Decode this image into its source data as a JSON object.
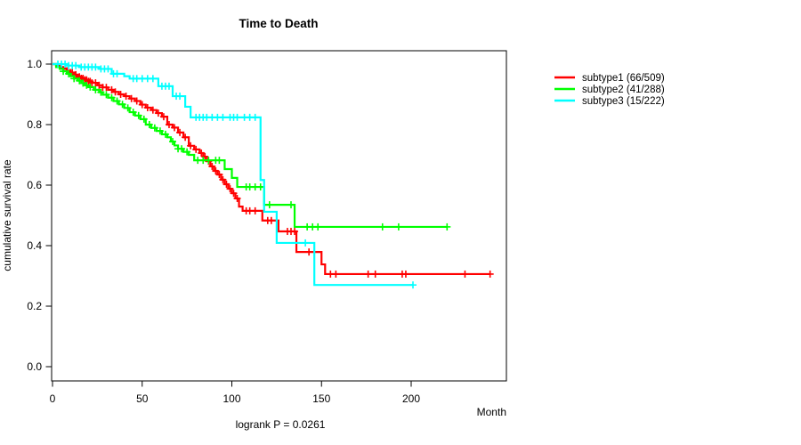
{
  "title": "Time to Death",
  "ylabel": "cumulative survival rate",
  "xlabel": "Month",
  "footnote": "logrank P = 0.0261",
  "axis_color": "#000000",
  "background_color": "#ffffff",
  "chart_data": {
    "type": "line",
    "subtype": "kaplan-meier-step-survival",
    "title": "Time to Death",
    "xlabel": "Month",
    "ylabel": "cumulative survival rate",
    "annotation": "logrank P = 0.0261",
    "xlim": [
      0,
      250
    ],
    "ylim": [
      0.0,
      1.0
    ],
    "x_ticks": [
      0,
      50,
      100,
      150,
      200
    ],
    "y_ticks": [
      "0.0",
      "0.2",
      "0.4",
      "0.6",
      "0.8",
      "1.0"
    ],
    "grid": false,
    "legend_position": "right-outside",
    "series": [
      {
        "name": "subtype1",
        "label": "subtype1 (66/509)",
        "events": 66,
        "n": 509,
        "color": "#FF0000",
        "steps": [
          [
            0,
            1.0
          ],
          [
            2,
            0.995
          ],
          [
            4,
            0.99
          ],
          [
            6,
            0.985
          ],
          [
            8,
            0.978
          ],
          [
            10,
            0.972
          ],
          [
            12,
            0.965
          ],
          [
            14,
            0.958
          ],
          [
            16,
            0.953
          ],
          [
            18,
            0.948
          ],
          [
            20,
            0.943
          ],
          [
            22,
            0.938
          ],
          [
            25,
            0.93
          ],
          [
            28,
            0.923
          ],
          [
            31,
            0.915
          ],
          [
            34,
            0.908
          ],
          [
            37,
            0.9
          ],
          [
            40,
            0.894
          ],
          [
            43,
            0.886
          ],
          [
            46,
            0.878
          ],
          [
            49,
            0.866
          ],
          [
            52,
            0.856
          ],
          [
            55,
            0.848
          ],
          [
            58,
            0.838
          ],
          [
            61,
            0.826
          ],
          [
            64,
            0.8
          ],
          [
            67,
            0.79
          ],
          [
            70,
            0.774
          ],
          [
            73,
            0.758
          ],
          [
            76,
            0.73
          ],
          [
            79,
            0.718
          ],
          [
            82,
            0.706
          ],
          [
            84,
            0.694
          ],
          [
            86,
            0.679
          ],
          [
            88,
            0.662
          ],
          [
            90,
            0.647
          ],
          [
            92,
            0.635
          ],
          [
            94,
            0.618
          ],
          [
            96,
            0.603
          ],
          [
            98,
            0.588
          ],
          [
            100,
            0.573
          ],
          [
            102,
            0.556
          ],
          [
            104,
            0.529
          ],
          [
            106,
            0.515
          ],
          [
            117,
            0.483
          ],
          [
            126,
            0.447
          ],
          [
            136,
            0.379
          ],
          [
            150,
            0.338
          ],
          [
            152,
            0.306
          ],
          [
            244,
            0.306
          ]
        ],
        "censor_months": [
          8,
          10,
          11,
          13,
          15,
          16,
          17,
          18,
          19,
          20,
          21,
          22,
          24,
          26,
          28,
          30,
          33,
          35,
          38,
          41,
          44,
          47,
          50,
          53,
          56,
          59,
          62,
          65,
          68,
          71,
          74,
          77,
          80,
          83,
          85,
          87,
          89,
          91,
          93,
          95,
          97,
          99,
          101,
          103,
          108,
          110,
          113,
          120,
          122,
          131,
          133,
          135,
          143,
          155,
          158,
          176,
          180,
          195,
          197,
          230,
          244
        ]
      },
      {
        "name": "subtype2",
        "label": "subtype2 (41/288)",
        "events": 41,
        "n": 288,
        "color": "#00FF00",
        "steps": [
          [
            0,
            1.0
          ],
          [
            2,
            0.99
          ],
          [
            4,
            0.984
          ],
          [
            6,
            0.976
          ],
          [
            8,
            0.968
          ],
          [
            10,
            0.96
          ],
          [
            12,
            0.952
          ],
          [
            14,
            0.945
          ],
          [
            16,
            0.937
          ],
          [
            18,
            0.93
          ],
          [
            20,
            0.924
          ],
          [
            23,
            0.915
          ],
          [
            26,
            0.907
          ],
          [
            28,
            0.899
          ],
          [
            31,
            0.889
          ],
          [
            34,
            0.878
          ],
          [
            37,
            0.867
          ],
          [
            40,
            0.855
          ],
          [
            43,
            0.841
          ],
          [
            46,
            0.83
          ],
          [
            49,
            0.818
          ],
          [
            52,
            0.8
          ],
          [
            55,
            0.789
          ],
          [
            58,
            0.779
          ],
          [
            61,
            0.768
          ],
          [
            64,
            0.758
          ],
          [
            66,
            0.744
          ],
          [
            68,
            0.731
          ],
          [
            70,
            0.72
          ],
          [
            73,
            0.71
          ],
          [
            76,
            0.7
          ],
          [
            79,
            0.682
          ],
          [
            96,
            0.653
          ],
          [
            100,
            0.624
          ],
          [
            103,
            0.594
          ],
          [
            118,
            0.535
          ],
          [
            135,
            0.462
          ],
          [
            220,
            0.462
          ]
        ],
        "censor_months": [
          6,
          9,
          12,
          15,
          17,
          19,
          21,
          24,
          27,
          30,
          33,
          36,
          39,
          42,
          45,
          48,
          51,
          54,
          57,
          60,
          63,
          67,
          70,
          72,
          75,
          81,
          84,
          87,
          91,
          93,
          108,
          110,
          113,
          116,
          121,
          133,
          142,
          145,
          148,
          184,
          193,
          220
        ]
      },
      {
        "name": "subtype3",
        "label": "subtype3 (15/222)",
        "events": 15,
        "n": 222,
        "color": "#00FFFF",
        "steps": [
          [
            0,
            1.0
          ],
          [
            8,
            0.995
          ],
          [
            15,
            0.99
          ],
          [
            26,
            0.984
          ],
          [
            33,
            0.968
          ],
          [
            40,
            0.96
          ],
          [
            43,
            0.952
          ],
          [
            59,
            0.927
          ],
          [
            67,
            0.894
          ],
          [
            74,
            0.859
          ],
          [
            77,
            0.824
          ],
          [
            116,
            0.617
          ],
          [
            118,
            0.512
          ],
          [
            125,
            0.409
          ],
          [
            146,
            0.27
          ],
          [
            201,
            0.27
          ]
        ],
        "censor_months": [
          3,
          5,
          7,
          9,
          11,
          13,
          16,
          18,
          20,
          22,
          24,
          27,
          29,
          31,
          34,
          36,
          45,
          47,
          50,
          53,
          56,
          61,
          63,
          65,
          69,
          71,
          80,
          82,
          84,
          86,
          89,
          92,
          95,
          99,
          101,
          103,
          107,
          110,
          113,
          141,
          201
        ]
      }
    ]
  }
}
